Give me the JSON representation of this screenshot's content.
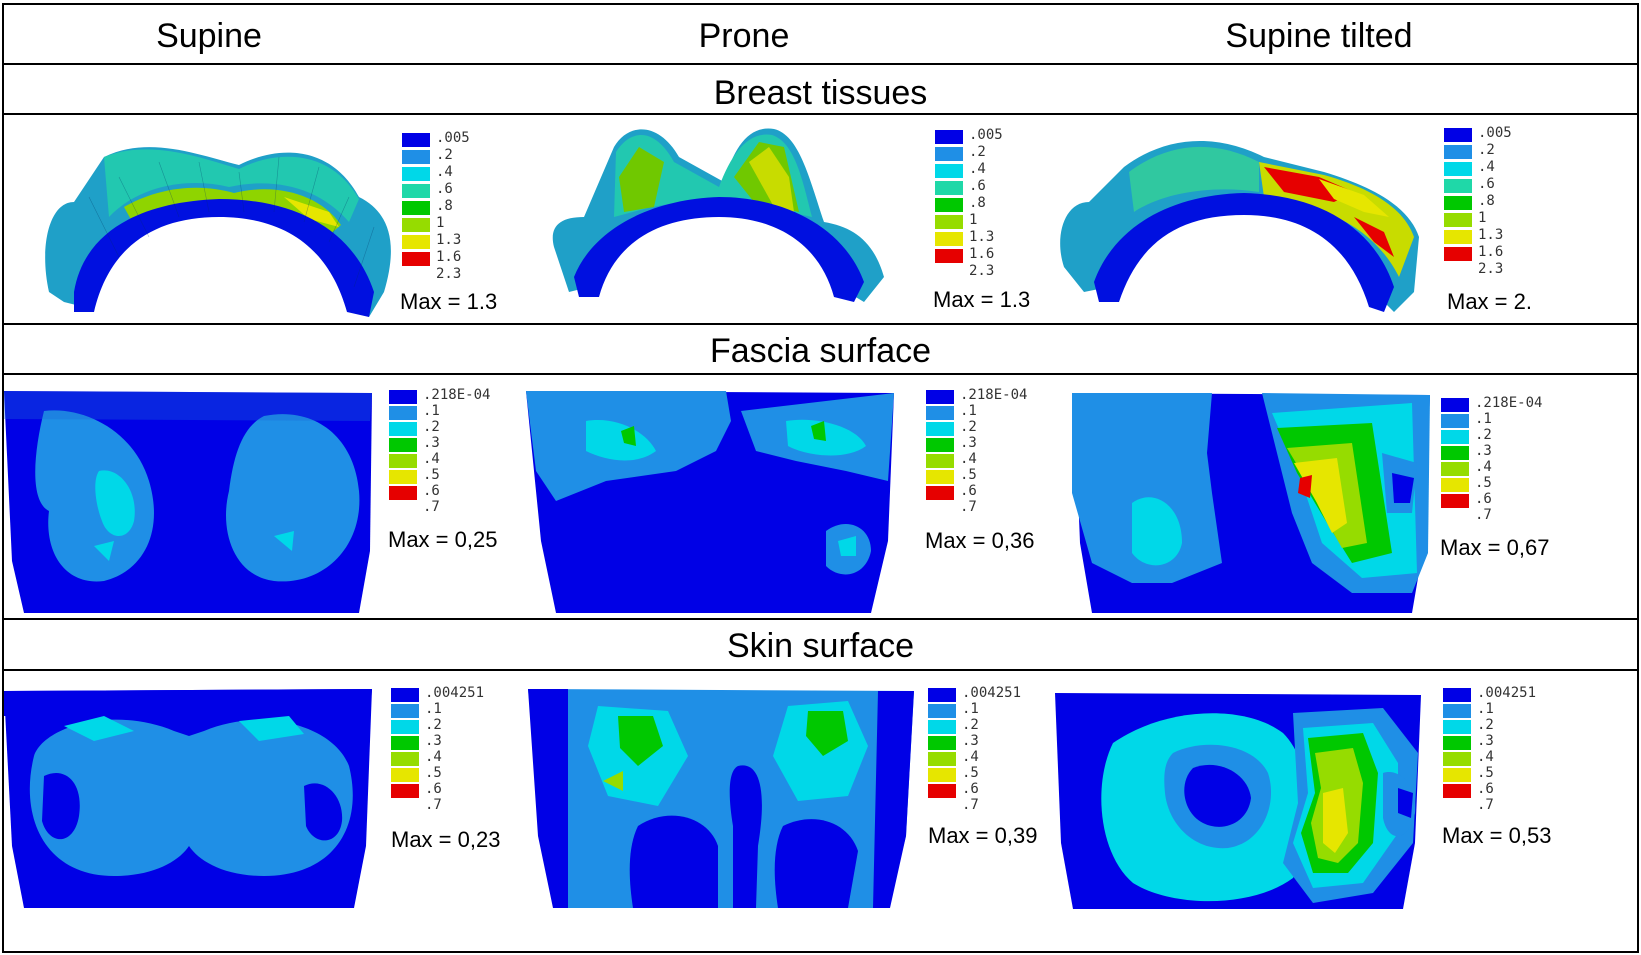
{
  "columns": [
    "Supine",
    "Prone",
    "Supine tilted"
  ],
  "sections": [
    "Breast tissues",
    "Fascia surface",
    "Skin surface"
  ],
  "colors": {
    "c1": "#0000e6",
    "c2": "#1f8fe6",
    "c3": "#00d8e8",
    "c4": "#1fd8a8",
    "c5": "#00c800",
    "c6": "#96dc00",
    "c7": "#e6e600",
    "c8": "#e60000"
  },
  "rows": [
    {
      "legend": [
        ".005",
        ".2",
        ".4",
        ".6",
        ".8",
        "1",
        "1.3",
        "1.6",
        "2.3"
      ],
      "max": [
        "Max = 1.3",
        "Max = 1.3",
        "Max = 2."
      ]
    },
    {
      "legend": [
        ".218E-04",
        ".1",
        ".2",
        ".3",
        ".4",
        ".5",
        ".6",
        ".7"
      ],
      "max": [
        "Max = 0,25",
        "Max = 0,36",
        "Max = 0,67"
      ]
    },
    {
      "legend": [
        ".004251",
        ".1",
        ".2",
        ".3",
        ".4",
        ".5",
        ".6",
        ".7"
      ],
      "max": [
        "Max = 0,23",
        "Max = 0,39",
        "Max = 0,53"
      ]
    }
  ]
}
